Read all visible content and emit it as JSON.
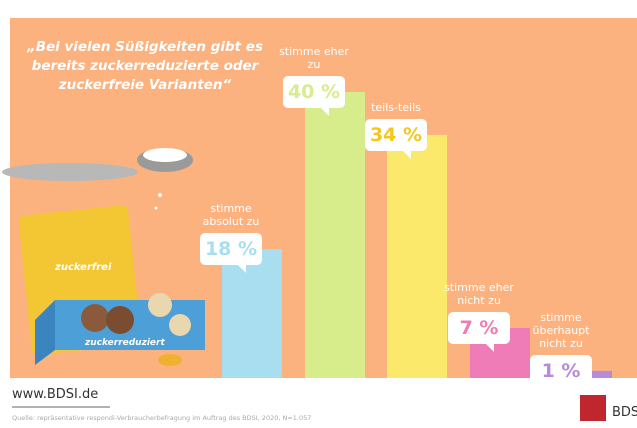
{
  "chart_data": {
    "type": "bar",
    "quote": "„Bei vielen Süßigkeiten gibt es bereits zuckerreduzierte oder zuckerfreie Varianten“",
    "categories": [
      "stimme absolut zu",
      "stimme eher zu",
      "teils-teils",
      "stimme eher nicht zu",
      "stimme überhaupt nicht zu"
    ],
    "values": [
      18,
      40,
      34,
      7,
      1
    ],
    "value_labels": [
      "18 %",
      "40 %",
      "34 %",
      "7 %",
      "1 %"
    ],
    "colors": [
      "#a9def0",
      "#d7ec8b",
      "#fbe96b",
      "#ef7bb7",
      "#b78bd8"
    ],
    "package_labels": [
      "zuckerfrei",
      "zuckerreduziert"
    ],
    "website": "www.BDSI.de",
    "source": "Quelle: repräsentative respondi-Verbraucherbefragung im Auftrag des BDSI, 2020, N=1.057",
    "logo": "BDSI"
  }
}
